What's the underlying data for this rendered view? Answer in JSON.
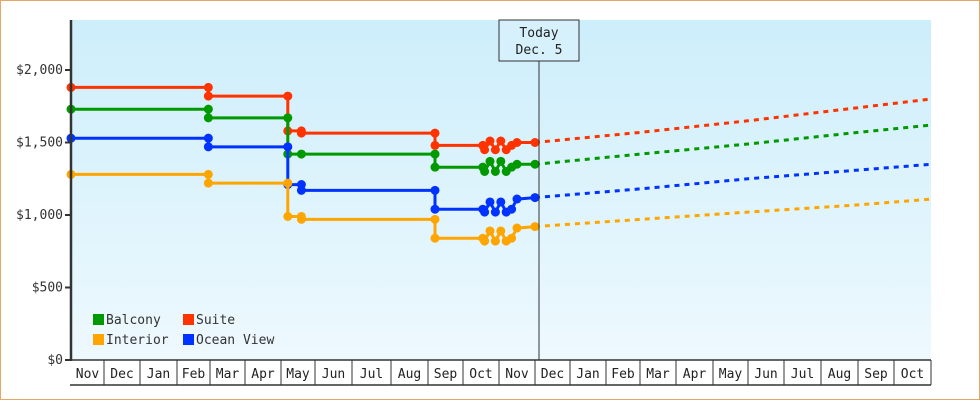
{
  "chart_data": {
    "type": "line",
    "title": "",
    "xlabel": "",
    "ylabel": "",
    "ylim": [
      0,
      2300
    ],
    "y_ticks": [
      "$0",
      "$500",
      "$1,000",
      "$1,500",
      "$2,000"
    ],
    "y_tick_values": [
      0,
      500,
      1000,
      1500,
      2000
    ],
    "x_tick_labels": [
      "Nov",
      "Dec",
      "Jan",
      "Feb",
      "Mar",
      "Apr",
      "May",
      "Jun",
      "Jul",
      "Aug",
      "Sep",
      "Oct",
      "Nov",
      "Dec",
      "Jan",
      "Feb",
      "Mar",
      "Apr",
      "May",
      "Jun",
      "Jul",
      "Aug",
      "Sep",
      "Oct"
    ],
    "grid": false,
    "background": "gradient light blue",
    "today_marker": {
      "line1": "Today",
      "line2": "Dec. 5",
      "x_month_index": 12.1
    },
    "legend": {
      "position": "bottom-left inside plot",
      "entries": [
        {
          "label": "Balcony",
          "color": "#009900"
        },
        {
          "label": "Suite",
          "color": "#ff3300"
        },
        {
          "label": "Interior",
          "color": "#ffa500"
        },
        {
          "label": "Ocean View",
          "color": "#0033ff"
        }
      ]
    },
    "series": [
      {
        "name": "Suite",
        "color": "#ff3300",
        "style": "step-historical + dotted-forecast",
        "historical": [
          [
            0,
            1880
          ],
          [
            3.95,
            1880
          ],
          [
            3.95,
            1820
          ],
          [
            6.2,
            1820
          ],
          [
            6.2,
            1580
          ],
          [
            6.6,
            1580
          ],
          [
            6.6,
            1565
          ],
          [
            10.2,
            1565
          ],
          [
            10.2,
            1480
          ],
          [
            11.55,
            1480
          ],
          [
            11.6,
            1450
          ],
          [
            11.75,
            1510
          ],
          [
            11.9,
            1450
          ],
          [
            12.05,
            1510
          ],
          [
            12.2,
            1450
          ],
          [
            12.35,
            1480
          ],
          [
            12.5,
            1500
          ],
          [
            13.0,
            1500
          ]
        ],
        "forecast": [
          [
            13.0,
            1500
          ],
          [
            16,
            1570
          ],
          [
            19,
            1650
          ],
          [
            22,
            1740
          ],
          [
            24,
            1800
          ]
        ]
      },
      {
        "name": "Balcony",
        "color": "#009900",
        "style": "step-historical + dotted-forecast",
        "historical": [
          [
            0,
            1730
          ],
          [
            3.95,
            1730
          ],
          [
            3.95,
            1670
          ],
          [
            6.2,
            1670
          ],
          [
            6.2,
            1420
          ],
          [
            6.6,
            1420
          ],
          [
            10.2,
            1420
          ],
          [
            10.2,
            1330
          ],
          [
            11.55,
            1330
          ],
          [
            11.6,
            1300
          ],
          [
            11.75,
            1370
          ],
          [
            11.9,
            1300
          ],
          [
            12.05,
            1370
          ],
          [
            12.2,
            1300
          ],
          [
            12.35,
            1330
          ],
          [
            12.5,
            1350
          ],
          [
            13.0,
            1350
          ]
        ],
        "forecast": [
          [
            13.0,
            1350
          ],
          [
            16,
            1420
          ],
          [
            19,
            1490
          ],
          [
            22,
            1570
          ],
          [
            24,
            1620
          ]
        ]
      },
      {
        "name": "Ocean View",
        "color": "#0033ff",
        "style": "step-historical + dotted-forecast",
        "historical": [
          [
            0,
            1530
          ],
          [
            3.95,
            1530
          ],
          [
            3.95,
            1470
          ],
          [
            6.2,
            1470
          ],
          [
            6.2,
            1210
          ],
          [
            6.6,
            1210
          ],
          [
            6.6,
            1170
          ],
          [
            10.2,
            1170
          ],
          [
            10.2,
            1040
          ],
          [
            11.55,
            1040
          ],
          [
            11.6,
            1020
          ],
          [
            11.75,
            1090
          ],
          [
            11.9,
            1020
          ],
          [
            12.05,
            1090
          ],
          [
            12.2,
            1020
          ],
          [
            12.35,
            1040
          ],
          [
            12.5,
            1110
          ],
          [
            13.0,
            1120
          ]
        ],
        "forecast": [
          [
            13.0,
            1120
          ],
          [
            16,
            1180
          ],
          [
            19,
            1250
          ],
          [
            22,
            1310
          ],
          [
            24,
            1350
          ]
        ]
      },
      {
        "name": "Interior",
        "color": "#ffa500",
        "style": "step-historical + dotted-forecast",
        "historical": [
          [
            0,
            1280
          ],
          [
            3.95,
            1280
          ],
          [
            3.95,
            1220
          ],
          [
            6.2,
            1220
          ],
          [
            6.2,
            990
          ],
          [
            6.6,
            990
          ],
          [
            6.6,
            970
          ],
          [
            10.2,
            970
          ],
          [
            10.2,
            840
          ],
          [
            11.55,
            840
          ],
          [
            11.6,
            820
          ],
          [
            11.75,
            890
          ],
          [
            11.9,
            820
          ],
          [
            12.05,
            890
          ],
          [
            12.2,
            820
          ],
          [
            12.35,
            840
          ],
          [
            12.5,
            910
          ],
          [
            13.0,
            920
          ]
        ],
        "forecast": [
          [
            13.0,
            920
          ],
          [
            16,
            970
          ],
          [
            19,
            1020
          ],
          [
            22,
            1070
          ],
          [
            24,
            1110
          ]
        ]
      }
    ]
  }
}
